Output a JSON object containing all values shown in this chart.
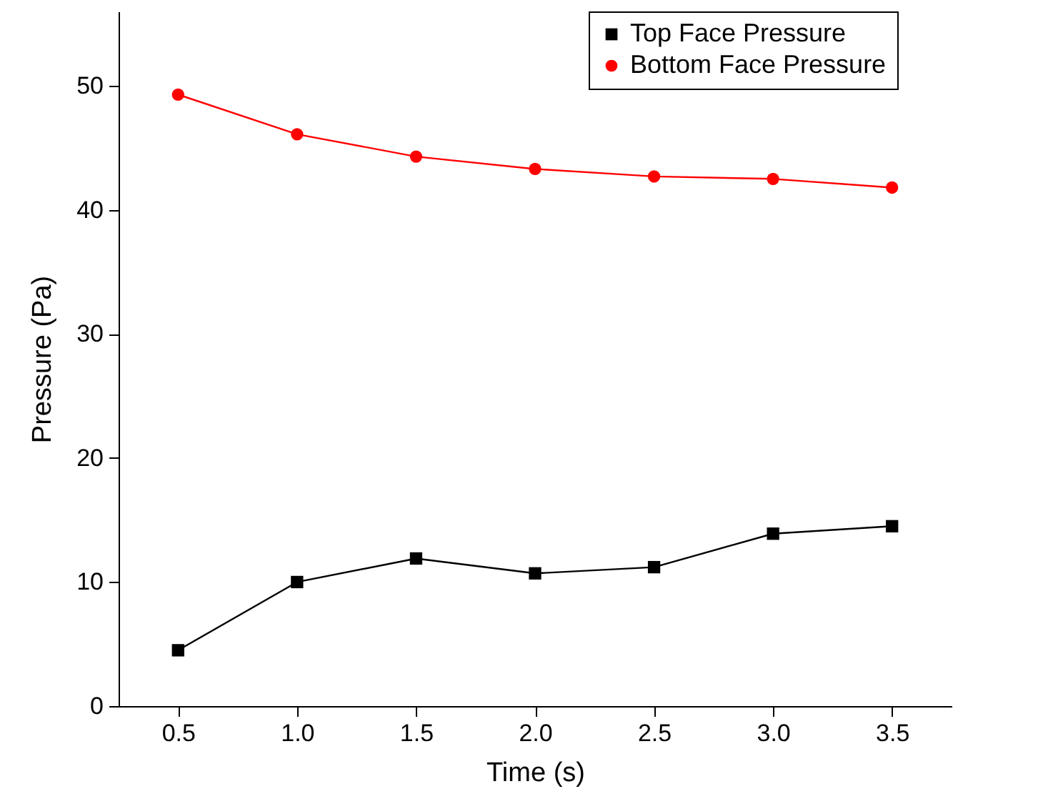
{
  "chart_data": {
    "type": "line",
    "xlabel": "Time (s)",
    "ylabel": "Pressure (Pa)",
    "x": [
      0.5,
      1.0,
      1.5,
      2.0,
      2.5,
      3.0,
      3.5
    ],
    "series": [
      {
        "name": "Top Face Pressure",
        "color": "#000000",
        "marker": "square",
        "values": [
          4.5,
          10.0,
          11.9,
          10.7,
          11.2,
          13.9,
          14.5
        ]
      },
      {
        "name": "Bottom Face Pressure",
        "color": "#ff0000",
        "marker": "circle",
        "values": [
          49.3,
          46.1,
          44.3,
          43.3,
          42.7,
          42.5,
          41.8
        ]
      }
    ],
    "xlim": [
      0.25,
      3.75
    ],
    "xticks": [
      {
        "value": 0.5,
        "label": "0.5"
      },
      {
        "value": 1,
        "label": "1.0"
      },
      {
        "value": 1.5,
        "label": "1.5"
      },
      {
        "value": 2,
        "label": "2.0"
      },
      {
        "value": 2.5,
        "label": "2.5"
      },
      {
        "value": 3,
        "label": "3.0"
      },
      {
        "value": 3.5,
        "label": "3.5"
      }
    ],
    "ylim": [
      0,
      56
    ],
    "yticks": [
      0,
      10,
      20,
      30,
      40,
      50
    ],
    "grid": false,
    "legend": "top right"
  }
}
